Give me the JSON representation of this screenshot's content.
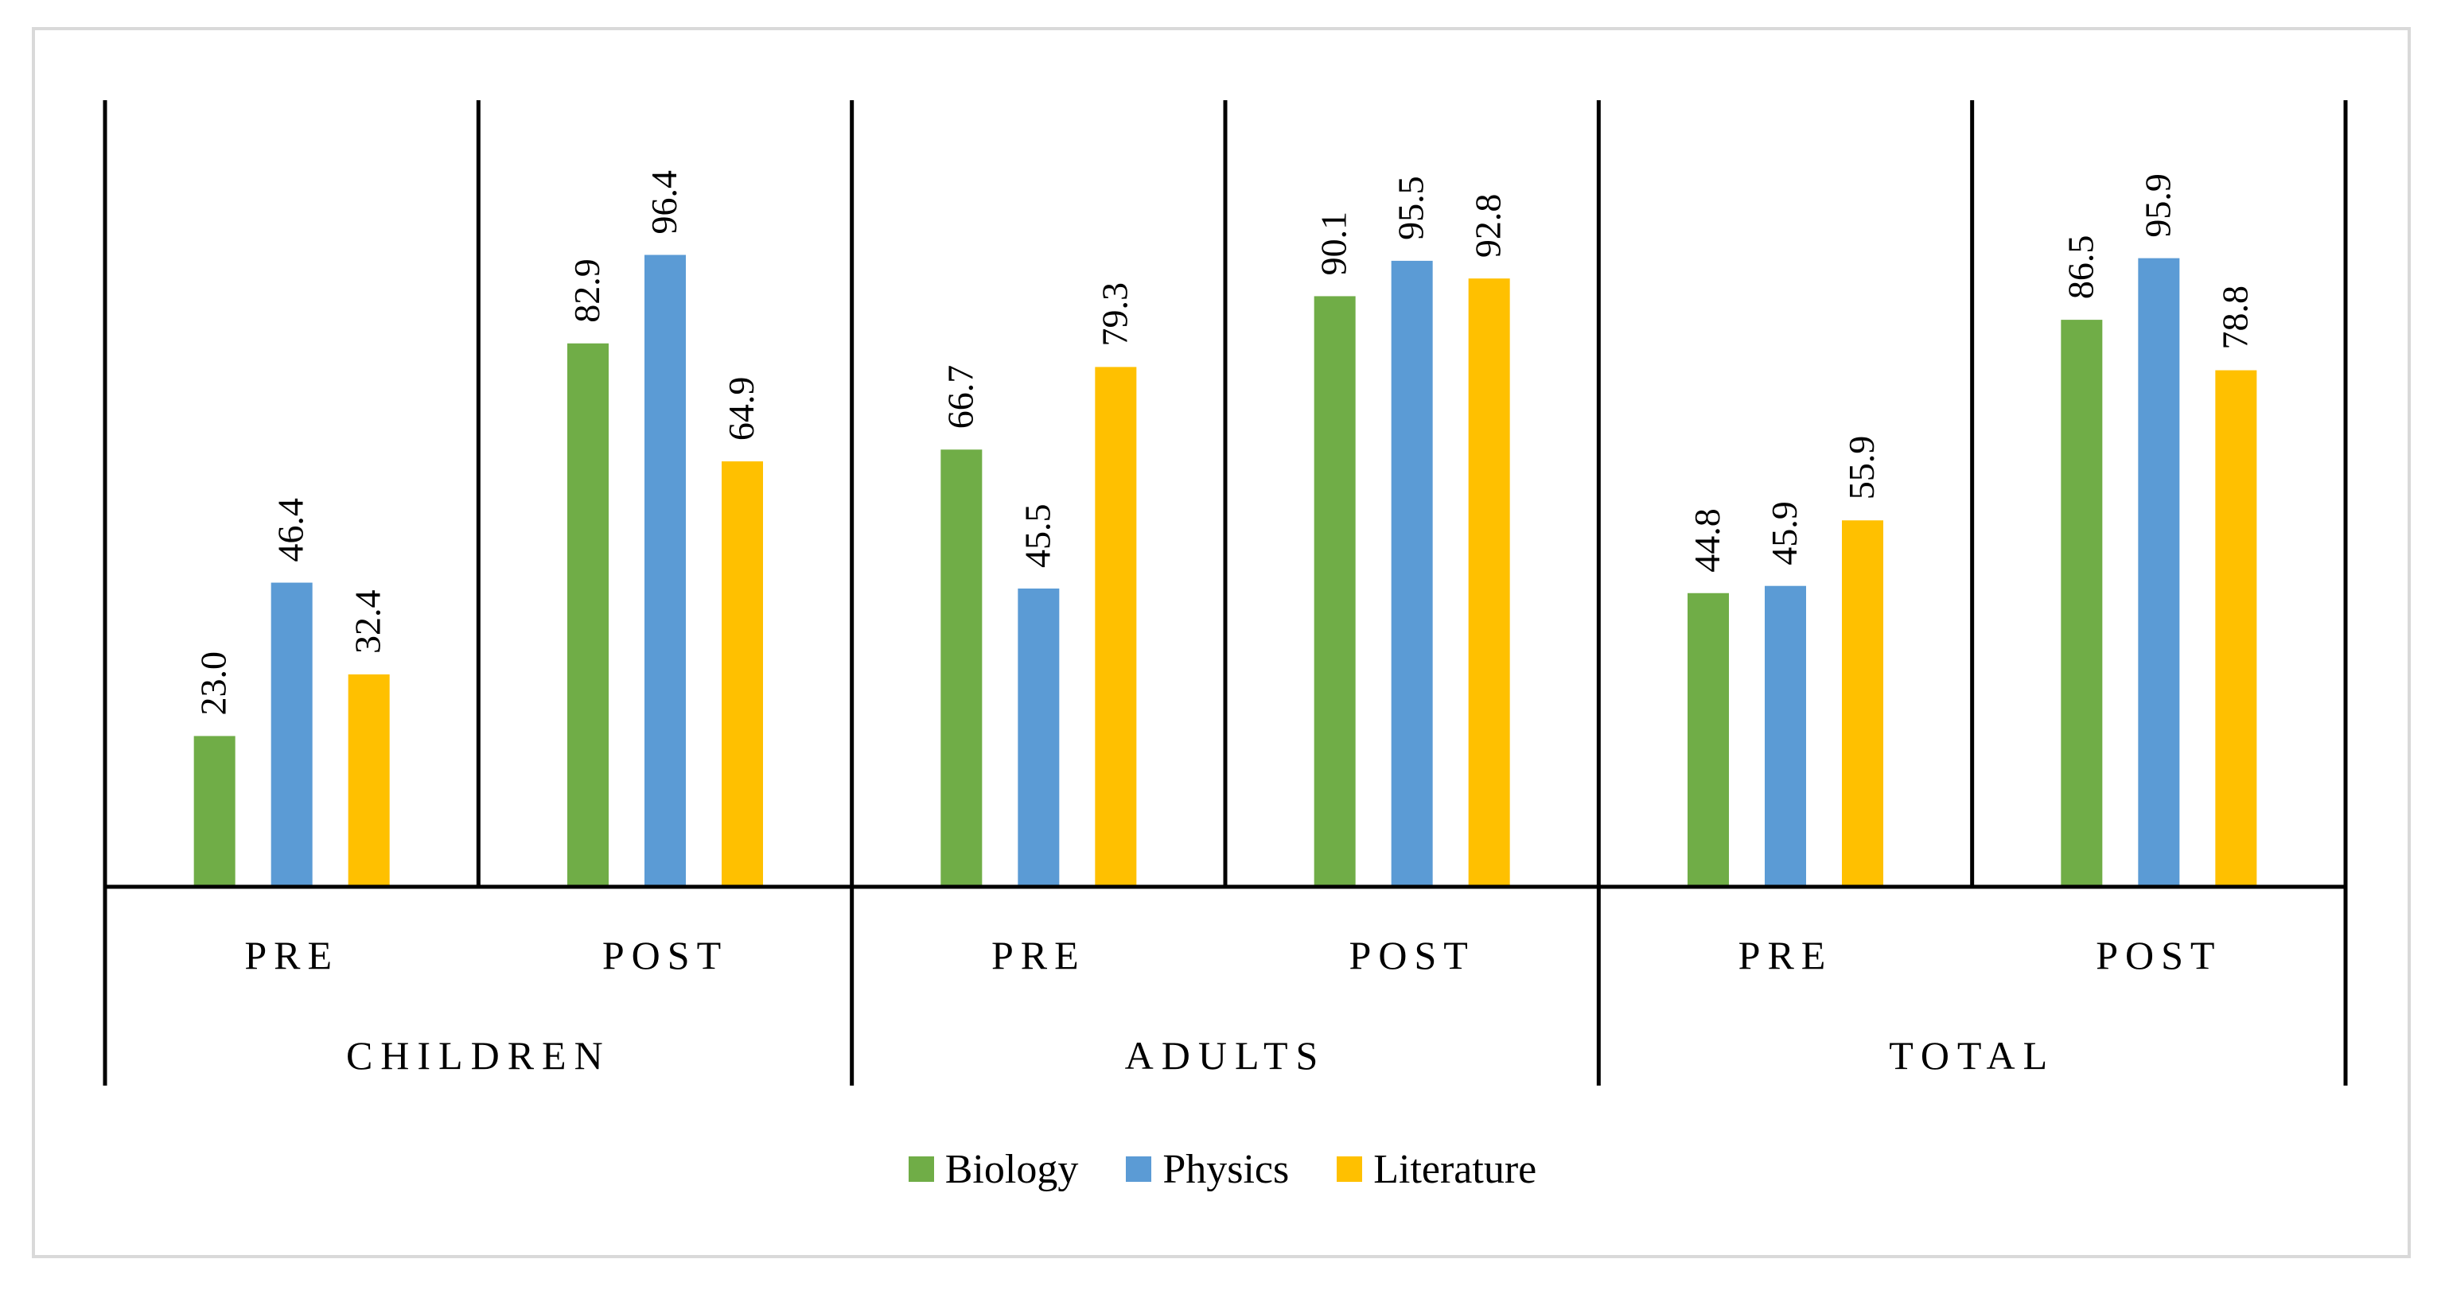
{
  "chart_data": {
    "type": "bar",
    "groups": [
      {
        "name": "CHILDREN",
        "phases": [
          {
            "label": "PRE",
            "values": [
              23.0,
              46.4,
              32.4
            ]
          },
          {
            "label": "POST",
            "values": [
              82.9,
              96.4,
              64.9
            ]
          }
        ]
      },
      {
        "name": "ADULTS",
        "phases": [
          {
            "label": "PRE",
            "values": [
              66.7,
              45.5,
              79.3
            ]
          },
          {
            "label": "POST",
            "values": [
              90.1,
              95.5,
              92.8
            ]
          }
        ]
      },
      {
        "name": "TOTAL",
        "phases": [
          {
            "label": "PRE",
            "values": [
              44.8,
              45.9,
              55.9
            ]
          },
          {
            "label": "POST",
            "values": [
              86.5,
              95.9,
              78.8
            ]
          }
        ]
      }
    ],
    "series": [
      {
        "name": "Biology",
        "color": "#70ad47"
      },
      {
        "name": "Physics",
        "color": "#5b9bd5"
      },
      {
        "name": "Literature",
        "color": "#ffc000"
      }
    ],
    "ylim": [
      0,
      120
    ],
    "legend_position": "bottom",
    "data_labels": "rotated"
  }
}
